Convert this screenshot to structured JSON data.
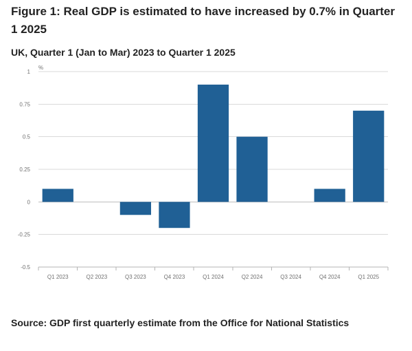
{
  "page": {
    "title": "Figure 1: Real GDP is estimated to have increased by 0.7% in Quarter 1 2025",
    "subtitle": "UK, Quarter 1 (Jan to Mar) 2023 to Quarter 1 2025",
    "source": "Source: GDP first quarterly estimate from the Office for National Statistics"
  },
  "chart_data": {
    "type": "bar",
    "title": "Figure 1: Real GDP is estimated to have increased by 0.7% in Quarter 1 2025",
    "subtitle": "UK, Quarter 1 (Jan to Mar) 2023 to Quarter 1 2025",
    "xlabel": "",
    "ylabel": "%",
    "ylim": [
      -0.5,
      1
    ],
    "yticks": [
      1,
      0.75,
      0.5,
      0.25,
      0,
      -0.25,
      -0.5
    ],
    "ytick_labels": [
      "1",
      "0.75",
      "0.5",
      "0.25",
      "0",
      "-0.25",
      "-0.5"
    ],
    "grid": true,
    "bar_color": "#206095",
    "grid_color": "#d9d9d9",
    "axis_color": "#b3b3b3",
    "text_color": "#707070",
    "categories": [
      "Q1 2023",
      "Q2 2023",
      "Q3 2023",
      "Q4 2023",
      "Q1 2024",
      "Q2 2024",
      "Q3 2024",
      "Q4 2024",
      "Q1 2025"
    ],
    "values": [
      0.1,
      0.0,
      -0.1,
      -0.2,
      0.9,
      0.5,
      0.0,
      0.1,
      0.7
    ]
  }
}
